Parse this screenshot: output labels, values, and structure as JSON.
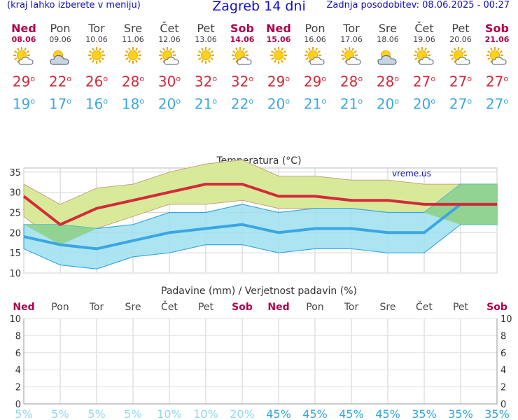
{
  "header": {
    "left": "(kraj lahko izberete v meniju)",
    "title": "Zagreb 14 dni",
    "right": "Zadnja posodobitev: 08.06.2025 - 00:27"
  },
  "days": [
    {
      "name": "Ned",
      "date": "08.06",
      "weekend": true,
      "icon": "partly-sunny-icon",
      "max": "29",
      "min": "19"
    },
    {
      "name": "Pon",
      "date": "09.06",
      "weekend": false,
      "icon": "cloudy-sun-icon",
      "max": "22",
      "min": "17"
    },
    {
      "name": "Tor",
      "date": "10.06",
      "weekend": false,
      "icon": "sun-icon",
      "max": "26",
      "min": "16"
    },
    {
      "name": "Sre",
      "date": "11.06",
      "weekend": false,
      "icon": "sun-icon",
      "max": "28",
      "min": "18"
    },
    {
      "name": "Čet",
      "date": "12.06",
      "weekend": false,
      "icon": "partly-sunny-icon",
      "max": "30",
      "min": "20"
    },
    {
      "name": "Pet",
      "date": "13.06",
      "weekend": false,
      "icon": "sun-icon",
      "max": "32",
      "min": "21"
    },
    {
      "name": "Sob",
      "date": "14.06",
      "weekend": true,
      "icon": "partly-sunny-icon",
      "max": "32",
      "min": "22"
    },
    {
      "name": "Ned",
      "date": "15.06",
      "weekend": true,
      "icon": "sun-icon",
      "max": "29",
      "min": "20"
    },
    {
      "name": "Pon",
      "date": "16.06",
      "weekend": false,
      "icon": "partly-sunny-icon",
      "max": "29",
      "min": "21"
    },
    {
      "name": "Tor",
      "date": "17.06",
      "weekend": false,
      "icon": "partly-sunny-icon",
      "max": "28",
      "min": "21"
    },
    {
      "name": "Sre",
      "date": "18.06",
      "weekend": false,
      "icon": "cloudy-sun-icon",
      "max": "28",
      "min": "20"
    },
    {
      "name": "Čet",
      "date": "19.06",
      "weekend": false,
      "icon": "partly-sunny-icon",
      "max": "27",
      "min": "20"
    },
    {
      "name": "Pet",
      "date": "20.06",
      "weekend": false,
      "icon": "partly-sunny-icon",
      "max": "27",
      "min": "27"
    },
    {
      "name": "Sob",
      "date": "21.06",
      "weekend": true,
      "icon": "partly-sunny-icon",
      "max": "27",
      "min": "27"
    }
  ],
  "degree_symbol": "o",
  "colors": {
    "max": "#d42a3a",
    "min": "#3aa6e4",
    "max_band": "#d8ea9a",
    "min_band": "#9ee0ee",
    "overlap": "#8fd18a",
    "weekend": "#b0004a",
    "pct_light": "#8fd8f0",
    "pct_dark": "#2fa6dc"
  },
  "chart_data": [
    {
      "type": "line",
      "title": "Temperatura (°C)",
      "watermark": "vreme.us",
      "categories": [
        "08.06",
        "09.06",
        "10.06",
        "11.06",
        "12.06",
        "13.06",
        "14.06",
        "15.06",
        "16.06",
        "17.06",
        "18.06",
        "19.06",
        "20.06",
        "21.06"
      ],
      "ylim": [
        10,
        36
      ],
      "yticks": [
        10,
        15,
        20,
        25,
        30,
        35
      ],
      "grid": true,
      "series": [
        {
          "values": [
            29,
            22,
            26,
            28,
            30,
            32,
            32,
            29,
            29,
            28,
            28,
            27,
            27,
            27
          ]
        },
        {
          "values": [
            19,
            17,
            16,
            18,
            20,
            21,
            22,
            20,
            21,
            21,
            20,
            20,
            27,
            27
          ]
        }
      ],
      "bands": [
        {
          "upper": [
            32,
            27,
            31,
            32,
            35,
            37,
            38,
            34,
            34,
            33,
            33,
            32,
            32,
            32
          ],
          "lower": [
            24,
            17,
            21,
            24,
            27,
            27,
            28,
            26,
            26,
            26,
            25,
            25,
            22,
            22
          ]
        },
        {
          "upper": [
            22,
            22,
            21,
            22,
            25,
            25,
            27,
            25,
            26,
            26,
            25,
            25,
            32,
            32
          ],
          "lower": [
            16,
            12,
            11,
            14,
            15,
            17,
            17,
            15,
            16,
            16,
            15,
            15,
            22,
            22
          ]
        }
      ]
    },
    {
      "type": "bar",
      "title": "Padavine (mm) / Verjetnost padavin (%)",
      "categories": [
        "08.06",
        "09.06",
        "10.06",
        "11.06",
        "12.06",
        "13.06",
        "14.06",
        "15.06",
        "16.06",
        "17.06",
        "18.06",
        "19.06",
        "20.06",
        "21.06"
      ],
      "ylim": [
        0,
        10
      ],
      "yticks": [
        0,
        2,
        4,
        6,
        8,
        10
      ],
      "values": [
        0,
        0,
        0,
        0,
        0,
        0,
        0,
        0,
        0,
        0,
        0,
        0,
        0,
        0
      ],
      "probability": [
        "5%",
        "5%",
        "5%",
        "5%",
        "10%",
        "10%",
        "20%",
        "45%",
        "45%",
        "45%",
        "45%",
        "35%",
        "35%",
        "35%"
      ]
    }
  ]
}
